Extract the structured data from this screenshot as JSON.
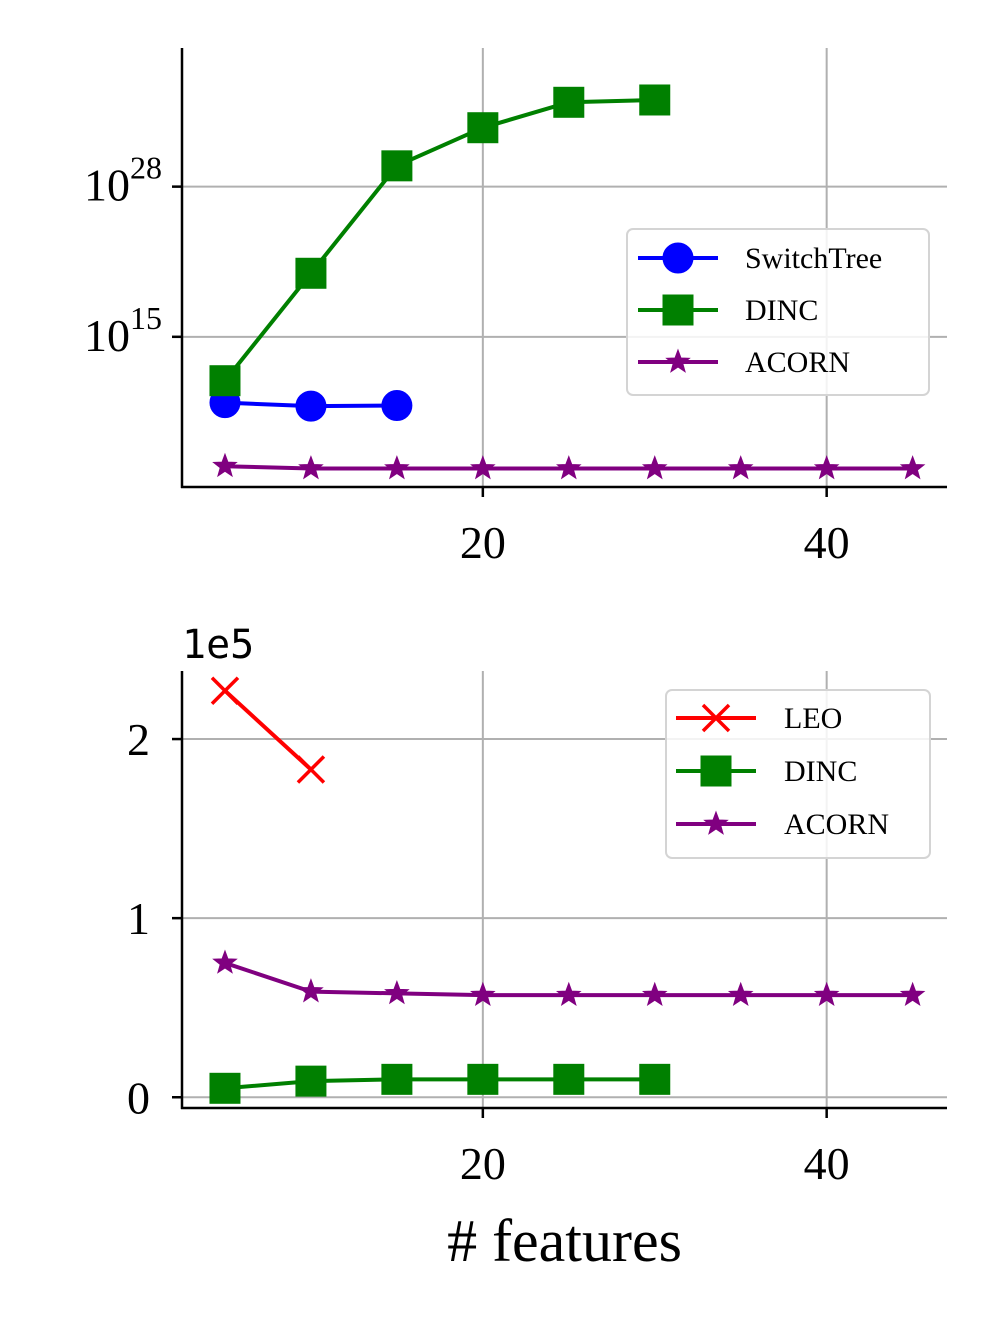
{
  "chart_data": [
    {
      "type": "line",
      "yscale": "log",
      "title": "",
      "xlabel": "",
      "ylabel": "",
      "xlim": [
        2.5,
        47
      ],
      "ylim_log10": [
        2,
        40
      ],
      "xticks": [
        20,
        40
      ],
      "xtick_labels": [
        "20",
        "40"
      ],
      "yticks_log10": [
        15,
        28
      ],
      "ytick_labels": [
        {
          "base": "10",
          "exp": "15"
        },
        {
          "base": "10",
          "exp": "28"
        }
      ],
      "grid": true,
      "legend_position": "center-right",
      "series": [
        {
          "name": "SwitchTree",
          "color": "#0000ff",
          "marker": "circle",
          "x": [
            5,
            10,
            15
          ],
          "y_log10": [
            9.3,
            9.0,
            9.05
          ]
        },
        {
          "name": "DINC",
          "color": "#008000",
          "marker": "square",
          "x": [
            5,
            10,
            15,
            20,
            25,
            30
          ],
          "y_log10": [
            11.2,
            20.5,
            29.8,
            33.1,
            35.3,
            35.5
          ]
        },
        {
          "name": "ACORN",
          "color": "#800080",
          "marker": "star",
          "x": [
            5,
            10,
            15,
            20,
            25,
            30,
            35,
            40,
            45
          ],
          "y_log10": [
            3.8,
            3.6,
            3.6,
            3.6,
            3.6,
            3.6,
            3.6,
            3.6,
            3.6
          ]
        }
      ]
    },
    {
      "type": "line",
      "yscale": "linear",
      "title": "",
      "xlabel": "# features",
      "ylabel": "",
      "offset_text": "1e5",
      "xlim": [
        2.5,
        47
      ],
      "ylim": [
        -0.06,
        2.38
      ],
      "xticks": [
        20,
        40
      ],
      "xtick_labels": [
        "20",
        "40"
      ],
      "yticks": [
        0,
        1,
        2
      ],
      "ytick_labels": [
        "0",
        "1",
        "2"
      ],
      "grid": true,
      "legend_position": "upper-right",
      "series": [
        {
          "name": "LEO",
          "color": "#ff0000",
          "marker": "x",
          "x": [
            5,
            10
          ],
          "y": [
            2.27,
            1.83
          ]
        },
        {
          "name": "DINC",
          "color": "#008000",
          "marker": "square",
          "x": [
            5,
            10,
            15,
            20,
            25,
            30
          ],
          "y": [
            0.05,
            0.09,
            0.1,
            0.1,
            0.1,
            0.1
          ]
        },
        {
          "name": "ACORN",
          "color": "#800080",
          "marker": "star",
          "x": [
            5,
            10,
            15,
            20,
            25,
            30,
            35,
            40,
            45
          ],
          "y": [
            0.75,
            0.59,
            0.58,
            0.57,
            0.57,
            0.57,
            0.57,
            0.57,
            0.57
          ]
        }
      ]
    }
  ]
}
